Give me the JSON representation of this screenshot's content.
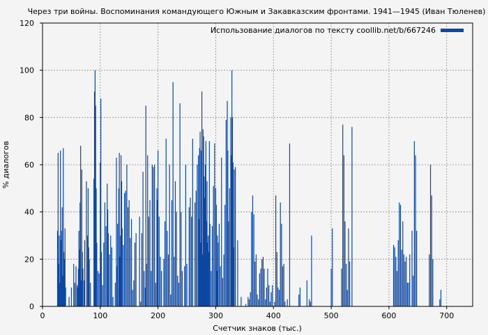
{
  "chart_data": {
    "type": "bar",
    "title": "Через три войны. Воспоминания командующего Южным и Закавказским фронтами. 1941—1945 (Иван Тюленев)",
    "xlabel": "Счетчик знаков (тыс.)",
    "ylabel": "% диалогов",
    "xlim": [
      0,
      745
    ],
    "ylim": [
      0,
      120
    ],
    "xticks": [
      0,
      100,
      200,
      300,
      400,
      500,
      600,
      700
    ],
    "yticks": [
      0,
      20,
      40,
      60,
      80,
      100,
      120
    ],
    "grid": true,
    "legend_position": "top-right",
    "bar_color": "#0d47a1",
    "series": [
      {
        "name": "Использование диалогов по тексту coollib.net/b/667246",
        "x": [
          26,
          27,
          28,
          29,
          30,
          31,
          32,
          33,
          34,
          35,
          36,
          37,
          38,
          39,
          40,
          41,
          42,
          46,
          48,
          50,
          54,
          56,
          58,
          60,
          61,
          62,
          63,
          64,
          65,
          66,
          67,
          68,
          69,
          70,
          71,
          72,
          73,
          76,
          78,
          79,
          80,
          81,
          82,
          83,
          84,
          88,
          89,
          90,
          91,
          92,
          93,
          94,
          96,
          98,
          100,
          101,
          102,
          104,
          106,
          108,
          110,
          112,
          113,
          114,
          116,
          118,
          120,
          122,
          126,
          128,
          129,
          130,
          132,
          133,
          134,
          135,
          136,
          137,
          138,
          140,
          142,
          144,
          146,
          148,
          150,
          152,
          154,
          156,
          158,
          160,
          162,
          164,
          166,
          168,
          170,
          172,
          174,
          176,
          178,
          179,
          180,
          182,
          184,
          186,
          188,
          190,
          192,
          194,
          196,
          198,
          199,
          200,
          202,
          204,
          206,
          210,
          212,
          214,
          216,
          218,
          220,
          222,
          224,
          226,
          228,
          230,
          232,
          234,
          236,
          238,
          240,
          242,
          246,
          248,
          250,
          254,
          256,
          258,
          260,
          264,
          266,
          268,
          270,
          271,
          272,
          273,
          274,
          275,
          276,
          277,
          278,
          279,
          280,
          281,
          282,
          283,
          284,
          285,
          286,
          287,
          288,
          289,
          290,
          292,
          294,
          296,
          298,
          300,
          301,
          302,
          303,
          304,
          306,
          308,
          310,
          312,
          314,
          316,
          318,
          320,
          321,
          322,
          324,
          326,
          327,
          328,
          329,
          330,
          331,
          332,
          334,
          336,
          338,
          340,
          344,
          352,
          356,
          358,
          360,
          362,
          364,
          366,
          368,
          370,
          372,
          374,
          376,
          378,
          380,
          382,
          384,
          386,
          388,
          390,
          392,
          394,
          396,
          398,
          400,
          402,
          404,
          406,
          408,
          410,
          412,
          414,
          416,
          418,
          420,
          422,
          424,
          426,
          428,
          444,
          446,
          458,
          460,
          462,
          464,
          466,
          500,
          502,
          518,
          520,
          522,
          524,
          526,
          528,
          530,
          532,
          534,
          536,
          608,
          610,
          612,
          614,
          616,
          618,
          620,
          622,
          624,
          626,
          628,
          630,
          632,
          634,
          636,
          638,
          640,
          642,
          644,
          646,
          648,
          670,
          672,
          674,
          676,
          688,
          690
        ],
        "values": [
          32,
          65,
          18,
          30,
          10,
          66,
          28,
          32,
          42,
          13,
          67,
          23,
          20,
          33,
          8,
          0,
          0,
          4,
          0,
          8,
          18,
          10,
          17,
          9,
          8,
          16,
          32,
          24,
          44,
          68,
          11,
          58,
          23,
          16,
          0,
          11,
          28,
          53,
          30,
          50,
          25,
          20,
          0,
          10,
          0,
          0,
          54,
          91,
          100,
          85,
          50,
          27,
          15,
          14,
          61,
          88,
          23,
          9,
          27,
          44,
          34,
          52,
          41,
          31,
          22,
          30,
          25,
          4,
          10,
          63,
          17,
          35,
          50,
          65,
          21,
          30,
          64,
          53,
          33,
          26,
          48,
          49,
          60,
          42,
          45,
          29,
          37,
          7,
          11,
          27,
          31,
          0,
          0,
          38,
          2,
          31,
          57,
          15,
          8,
          85,
          18,
          64,
          38,
          45,
          15,
          60,
          59,
          60,
          10,
          50,
          45,
          66,
          38,
          21,
          15,
          20,
          36,
          71,
          32,
          22,
          60,
          5,
          45,
          95,
          21,
          53,
          40,
          13,
          10,
          86,
          40,
          15,
          17,
          60,
          18,
          42,
          46,
          38,
          71,
          44,
          49,
          60,
          64,
          37,
          67,
          74,
          27,
          66,
          91,
          22,
          75,
          72,
          55,
          46,
          60,
          70,
          36,
          53,
          27,
          30,
          23,
          70,
          35,
          15,
          34,
          51,
          69,
          50,
          43,
          15,
          30,
          27,
          35,
          17,
          63,
          12,
          22,
          43,
          79,
          87,
          66,
          36,
          50,
          80,
          64,
          100,
          80,
          61,
          25,
          58,
          59,
          0,
          28,
          0,
          4,
          1,
          4,
          3,
          6,
          40,
          47,
          39,
          19,
          22,
          5,
          3,
          14,
          16,
          20,
          21,
          16,
          3,
          8,
          16,
          9,
          2,
          6,
          9,
          0,
          2,
          47,
          23,
          8,
          7,
          44,
          35,
          17,
          18,
          2,
          0,
          3,
          0,
          69,
          5,
          8,
          11,
          0,
          3,
          2,
          30,
          16,
          33,
          16,
          77,
          64,
          36,
          18,
          7,
          33,
          19,
          0,
          76,
          26,
          25,
          21,
          15,
          28,
          44,
          43,
          24,
          36,
          22,
          19,
          21,
          10,
          10,
          22,
          0,
          32,
          13,
          70,
          64,
          32,
          22,
          60,
          47,
          20,
          3,
          7
        ]
      }
    ]
  }
}
